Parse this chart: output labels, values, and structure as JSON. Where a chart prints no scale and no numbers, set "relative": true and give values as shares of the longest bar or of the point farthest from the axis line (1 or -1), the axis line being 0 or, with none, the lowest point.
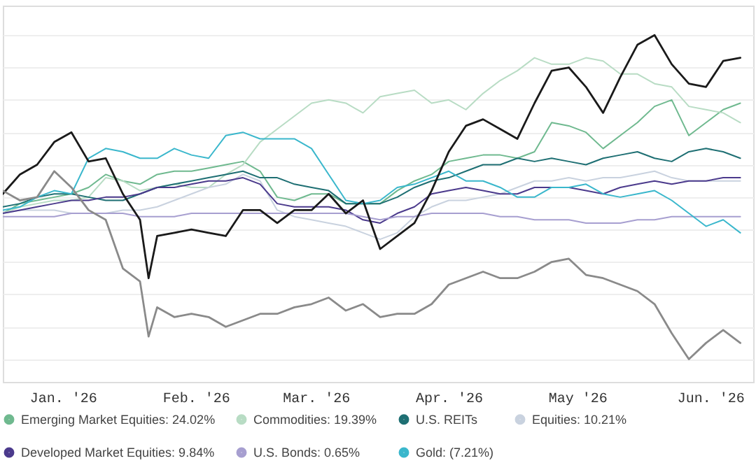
{
  "chart_data": {
    "type": "line",
    "relative": true,
    "grid": "y",
    "legend": "bottom",
    "xlim": [
      "2026-01-01",
      "2026-06-25"
    ],
    "xticks": [
      {
        "value": "2026-01-15",
        "label": "Jan. '26"
      },
      {
        "value": "2026-02-15",
        "label": "Feb. '26"
      },
      {
        "value": "2026-03-15",
        "label": "Mar. '26"
      },
      {
        "value": "2026-04-15",
        "label": "Apr. '26"
      },
      {
        "value": "2026-05-15",
        "label": "May '26"
      },
      {
        "value": "2026-06-15",
        "label": "Jun. '26"
      }
    ],
    "x": [
      "2026-01-01",
      "2026-01-05",
      "2026-01-09",
      "2026-01-13",
      "2026-01-17",
      "2026-01-21",
      "2026-01-25",
      "2026-01-29",
      "2026-02-02",
      "2026-02-06",
      "2026-02-10",
      "2026-02-14",
      "2026-02-18",
      "2026-02-22",
      "2026-02-26",
      "2026-03-02",
      "2026-03-06",
      "2026-03-10",
      "2026-03-14",
      "2026-03-18",
      "2026-03-22",
      "2026-03-26",
      "2026-03-30",
      "2026-04-03",
      "2026-04-07",
      "2026-04-11",
      "2026-04-15",
      "2026-04-19",
      "2026-04-23",
      "2026-04-27",
      "2026-05-01",
      "2026-05-05",
      "2026-05-09",
      "2026-05-13",
      "2026-05-17",
      "2026-05-21",
      "2026-05-25",
      "2026-05-29",
      "2026-06-02",
      "2026-06-06",
      "2026-06-10",
      "2026-06-14",
      "2026-06-18",
      "2026-06-22"
    ],
    "series": [
      {
        "name": "Emerging Market Equities: 24.02%",
        "color": "#6fb98f",
        "values": [
          0.45,
          0.48,
          0.49,
          0.5,
          0.51,
          0.53,
          0.57,
          0.55,
          0.54,
          0.57,
          0.58,
          0.58,
          0.59,
          0.6,
          0.61,
          0.58,
          0.5,
          0.49,
          0.51,
          0.51,
          0.48,
          0.48,
          0.48,
          0.52,
          0.55,
          0.57,
          0.61,
          0.62,
          0.63,
          0.63,
          0.62,
          0.64,
          0.73,
          0.72,
          0.7,
          0.65,
          0.69,
          0.73,
          0.78,
          0.8,
          0.69,
          0.73,
          0.77,
          0.79
        ]
      },
      {
        "color": "#1a1a1a",
        "x": [
          "2026-01-01",
          "2026-01-05",
          "2026-01-09",
          "2026-01-13",
          "2026-01-17",
          "2026-01-21",
          "2026-01-25",
          "2026-01-29",
          "2026-02-02",
          "2026-02-04",
          "2026-02-06",
          "2026-02-10",
          "2026-02-14",
          "2026-02-18",
          "2026-02-22",
          "2026-02-26",
          "2026-03-02",
          "2026-03-06",
          "2026-03-10",
          "2026-03-14",
          "2026-03-18",
          "2026-03-22",
          "2026-03-26",
          "2026-03-30",
          "2026-04-03",
          "2026-04-07",
          "2026-04-11",
          "2026-04-15",
          "2026-04-19",
          "2026-04-23",
          "2026-04-27",
          "2026-05-01",
          "2026-05-05",
          "2026-05-09",
          "2026-05-13",
          "2026-05-17",
          "2026-05-21",
          "2026-05-25",
          "2026-05-29",
          "2026-06-02",
          "2026-06-06",
          "2026-06-10",
          "2026-06-14",
          "2026-06-18",
          "2026-06-22"
        ],
        "values": [
          0.51,
          0.57,
          0.6,
          0.67,
          0.7,
          0.61,
          0.62,
          0.51,
          0.43,
          0.25,
          0.38,
          0.39,
          0.4,
          0.39,
          0.38,
          0.46,
          0.46,
          0.42,
          0.46,
          0.46,
          0.51,
          0.45,
          0.49,
          0.34,
          0.38,
          0.42,
          0.52,
          0.64,
          0.72,
          0.74,
          0.71,
          0.68,
          0.79,
          0.89,
          0.9,
          0.84,
          0.76,
          0.87,
          0.97,
          1,
          0.91,
          0.85,
          0.84,
          0.92,
          0.93
        ]
      },
      {
        "name": "Commodities: 19.39%",
        "color": "#b8dcc4",
        "values": [
          0.45,
          0.47,
          0.48,
          0.49,
          0.49,
          0.5,
          0.56,
          0.55,
          0.52,
          0.53,
          0.54,
          0.53,
          0.53,
          0.57,
          0.6,
          0.67,
          0.71,
          0.75,
          0.79,
          0.8,
          0.79,
          0.76,
          0.81,
          0.82,
          0.83,
          0.79,
          0.8,
          0.77,
          0.82,
          0.86,
          0.89,
          0.93,
          0.91,
          0.91,
          0.93,
          0.92,
          0.88,
          0.88,
          0.85,
          0.84,
          0.78,
          0.77,
          0.76,
          0.73
        ]
      },
      {
        "name": "U.S. REITs",
        "color": "#1e6f73",
        "values": [
          0.47,
          0.48,
          0.5,
          0.51,
          0.51,
          0.5,
          0.49,
          0.49,
          0.51,
          0.53,
          0.54,
          0.55,
          0.56,
          0.57,
          0.58,
          0.56,
          0.56,
          0.54,
          0.53,
          0.52,
          0.48,
          0.48,
          0.48,
          0.5,
          0.53,
          0.55,
          0.56,
          0.58,
          0.6,
          0.6,
          0.62,
          0.61,
          0.62,
          0.61,
          0.6,
          0.62,
          0.63,
          0.64,
          0.62,
          0.61,
          0.64,
          0.65,
          0.64,
          0.62
        ]
      },
      {
        "name": "Equities: 10.21%",
        "color": "#c9d2df",
        "values": [
          0.45,
          0.46,
          0.46,
          0.46,
          0.45,
          0.45,
          0.45,
          0.46,
          0.46,
          0.47,
          0.49,
          0.51,
          0.53,
          0.54,
          0.57,
          0.55,
          0.46,
          0.44,
          0.43,
          0.42,
          0.41,
          0.39,
          0.37,
          0.39,
          0.44,
          0.47,
          0.49,
          0.49,
          0.5,
          0.51,
          0.53,
          0.55,
          0.55,
          0.56,
          0.55,
          0.56,
          0.56,
          0.57,
          0.58,
          0.56,
          0.55,
          0.55,
          0.55,
          0.55
        ]
      },
      {
        "name": "Developed Market Equities: 9.84%",
        "color": "#4b3a8c",
        "values": [
          0.45,
          0.46,
          0.47,
          0.48,
          0.49,
          0.49,
          0.5,
          0.5,
          0.51,
          0.53,
          0.53,
          0.54,
          0.55,
          0.55,
          0.56,
          0.54,
          0.48,
          0.47,
          0.47,
          0.47,
          0.46,
          0.43,
          0.42,
          0.45,
          0.47,
          0.51,
          0.52,
          0.53,
          0.52,
          0.51,
          0.51,
          0.53,
          0.53,
          0.53,
          0.52,
          0.51,
          0.53,
          0.54,
          0.55,
          0.54,
          0.55,
          0.55,
          0.56,
          0.56
        ]
      },
      {
        "name": "U.S. Bonds: 0.65%",
        "color": "#a79fd0",
        "values": [
          0.44,
          0.44,
          0.44,
          0.44,
          0.45,
          0.45,
          0.45,
          0.45,
          0.44,
          0.44,
          0.44,
          0.45,
          0.45,
          0.45,
          0.45,
          0.45,
          0.45,
          0.45,
          0.45,
          0.45,
          0.45,
          0.44,
          0.43,
          0.44,
          0.44,
          0.45,
          0.45,
          0.45,
          0.45,
          0.44,
          0.44,
          0.43,
          0.43,
          0.43,
          0.42,
          0.42,
          0.42,
          0.43,
          0.43,
          0.44,
          0.44,
          0.44,
          0.44,
          0.44
        ]
      },
      {
        "name": "Gold: (7.21%)",
        "color": "#3ab7cc",
        "values": [
          0.46,
          0.47,
          0.5,
          0.52,
          0.51,
          0.62,
          0.65,
          0.64,
          0.62,
          0.62,
          0.65,
          0.63,
          0.62,
          0.69,
          0.7,
          0.68,
          0.68,
          0.68,
          0.65,
          0.57,
          0.49,
          0.48,
          0.49,
          0.53,
          0.54,
          0.56,
          0.58,
          0.55,
          0.55,
          0.53,
          0.5,
          0.5,
          0.53,
          0.53,
          0.54,
          0.51,
          0.5,
          0.51,
          0.52,
          0.49,
          0.45,
          0.41,
          0.43,
          0.39
        ]
      },
      {
        "color": "#8a8a8a",
        "x": [
          "2026-01-01",
          "2026-01-05",
          "2026-01-09",
          "2026-01-13",
          "2026-01-17",
          "2026-01-21",
          "2026-01-25",
          "2026-01-29",
          "2026-02-02",
          "2026-02-04",
          "2026-02-06",
          "2026-02-10",
          "2026-02-14",
          "2026-02-18",
          "2026-02-22",
          "2026-02-26",
          "2026-03-02",
          "2026-03-06",
          "2026-03-10",
          "2026-03-14",
          "2026-03-18",
          "2026-03-22",
          "2026-03-26",
          "2026-03-30",
          "2026-04-03",
          "2026-04-07",
          "2026-04-11",
          "2026-04-15",
          "2026-04-19",
          "2026-04-23",
          "2026-04-27",
          "2026-05-01",
          "2026-05-05",
          "2026-05-09",
          "2026-05-13",
          "2026-05-17",
          "2026-05-21",
          "2026-05-25",
          "2026-05-29",
          "2026-06-02",
          "2026-06-06",
          "2026-06-10",
          "2026-06-14",
          "2026-06-18",
          "2026-06-22"
        ],
        "values": [
          0.52,
          0.49,
          0.5,
          0.58,
          0.53,
          0.46,
          0.43,
          0.28,
          0.24,
          0.07,
          0.16,
          0.13,
          0.14,
          0.13,
          0.1,
          0.12,
          0.14,
          0.14,
          0.16,
          0.17,
          0.19,
          0.15,
          0.17,
          0.13,
          0.14,
          0.14,
          0.17,
          0.23,
          0.25,
          0.27,
          0.25,
          0.25,
          0.27,
          0.3,
          0.31,
          0.26,
          0.25,
          0.23,
          0.21,
          0.17,
          0.08,
          0,
          0.05,
          0.09,
          0.05
        ]
      }
    ]
  }
}
